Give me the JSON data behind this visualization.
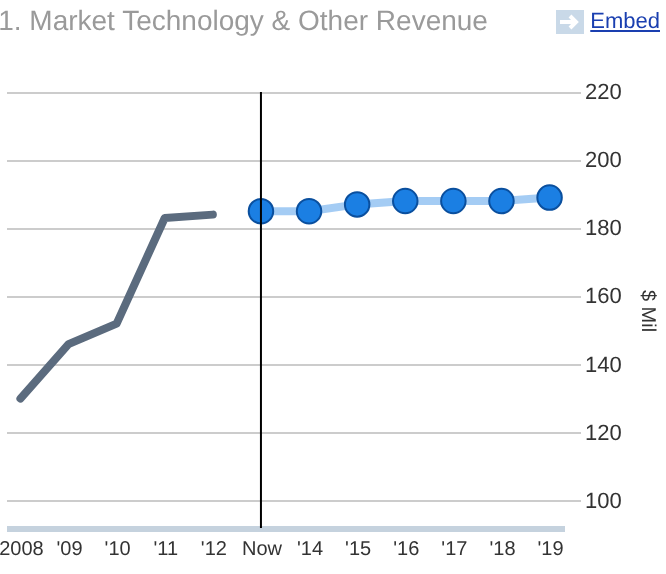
{
  "chart_data": {
    "type": "line",
    "title": "1. Market Technology & Other Revenue",
    "ylabel": "$ Mil",
    "annotations": [
      "Embed"
    ],
    "categories": [
      "2008",
      "'09",
      "'10",
      "'11",
      "'12",
      "Now",
      "'14",
      "'15",
      "'16",
      "'17",
      "'18",
      "'19"
    ],
    "series": [
      {
        "color": "#5b6b7e",
        "values": [
          130,
          146,
          152,
          183,
          184,
          null,
          null,
          null,
          null,
          null,
          null,
          null
        ]
      },
      {
        "color": "#1b7fe3",
        "marker": "circle",
        "values": [
          null,
          null,
          null,
          null,
          null,
          185,
          185,
          187,
          188,
          188,
          188,
          189
        ]
      }
    ],
    "ylim": [
      92,
      220
    ],
    "yticks": [
      100,
      120,
      140,
      160,
      180,
      200,
      220
    ],
    "grid": "y",
    "ref_lines": [
      {
        "axis": "x",
        "value": "Now",
        "color": "#000000"
      }
    ]
  }
}
